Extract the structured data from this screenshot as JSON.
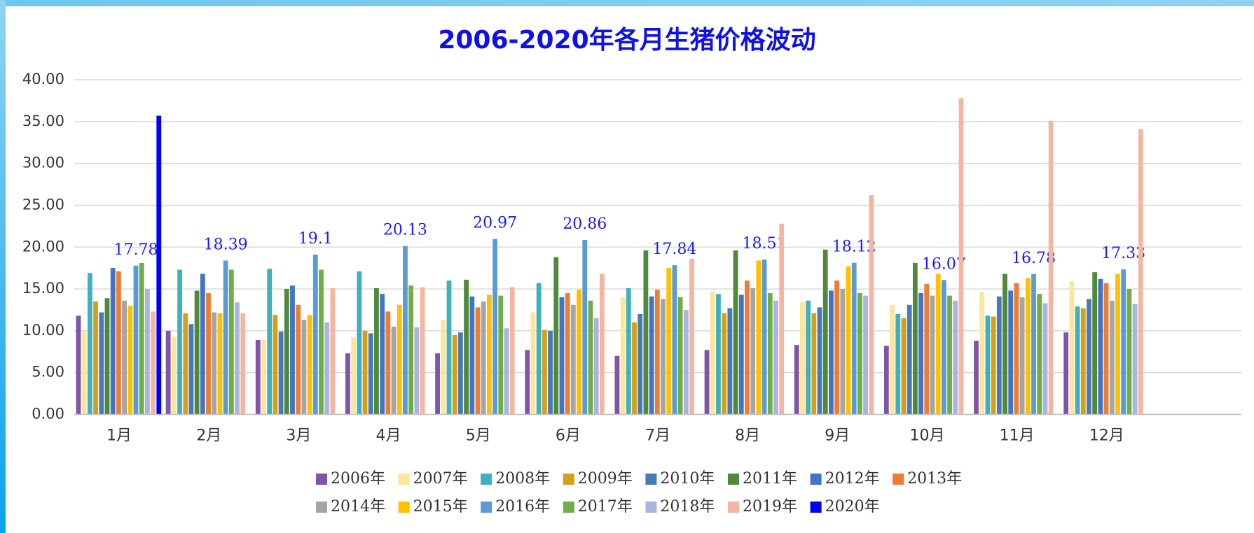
{
  "chart_data": {
    "type": "bar",
    "title": "2006-2020年各月生猪价格波动",
    "categories": [
      "1月",
      "2月",
      "3月",
      "4月",
      "5月",
      "6月",
      "7月",
      "8月",
      "9月",
      "10月",
      "11月",
      "12月"
    ],
    "ylim": [
      0,
      40
    ],
    "yticks": [
      {
        "value": 0,
        "label": "0.00"
      },
      {
        "value": 5,
        "label": "5.00"
      },
      {
        "value": 10,
        "label": "10.00"
      },
      {
        "value": 15,
        "label": "15.00"
      },
      {
        "value": 20,
        "label": "20.00"
      },
      {
        "value": 25,
        "label": "25.00"
      },
      {
        "value": 30,
        "label": "30.00"
      },
      {
        "value": 35,
        "label": "35.00"
      },
      {
        "value": 40,
        "label": "40.00"
      }
    ],
    "grid": true,
    "legend": "bottom",
    "data_labels_series": "2016年",
    "series": [
      {
        "name": "2006年",
        "color": "#7f55a5",
        "values": [
          11.8,
          10.0,
          8.9,
          7.3,
          7.3,
          7.7,
          7.0,
          7.7,
          8.3,
          8.2,
          8.8,
          9.8
        ]
      },
      {
        "name": "2007年",
        "color": "#fde59a",
        "values": [
          10.0,
          9.3,
          8.9,
          9.2,
          11.3,
          12.2,
          14.0,
          14.7,
          13.4,
          13.1,
          14.6,
          15.9
        ]
      },
      {
        "name": "2008年",
        "color": "#3fb0bd",
        "values": [
          16.9,
          17.3,
          17.4,
          17.1,
          16.0,
          15.7,
          15.1,
          14.4,
          13.6,
          12.0,
          11.8,
          12.9
        ]
      },
      {
        "name": "2009年",
        "color": "#d4a017",
        "values": [
          13.5,
          12.1,
          11.9,
          10.0,
          9.5,
          10.1,
          11.0,
          12.1,
          12.1,
          11.5,
          11.7,
          12.7
        ]
      },
      {
        "name": "2010年",
        "color": "#4a7ab5",
        "values": [
          12.2,
          10.8,
          9.9,
          9.7,
          9.8,
          10.0,
          12.0,
          12.7,
          12.8,
          13.1,
          14.1,
          13.8
        ]
      },
      {
        "name": "2011年",
        "color": "#4e8a3a",
        "values": [
          13.9,
          14.8,
          15.0,
          15.1,
          16.1,
          18.8,
          19.6,
          19.6,
          19.7,
          18.1,
          16.8,
          17.0
        ]
      },
      {
        "name": "2012年",
        "color": "#4472c4",
        "values": [
          17.5,
          16.8,
          15.4,
          14.4,
          14.1,
          14.0,
          14.1,
          14.3,
          14.8,
          14.5,
          14.8,
          16.2
        ]
      },
      {
        "name": "2013年",
        "color": "#ed7d31",
        "values": [
          17.1,
          14.5,
          13.1,
          12.3,
          12.8,
          14.5,
          14.9,
          16.0,
          16.0,
          15.6,
          15.7,
          15.7
        ]
      },
      {
        "name": "2014年",
        "color": "#a5a5a5",
        "values": [
          13.6,
          12.2,
          11.3,
          10.5,
          13.5,
          13.1,
          13.8,
          15.1,
          15.0,
          14.2,
          14.0,
          13.6
        ]
      },
      {
        "name": "2015年",
        "color": "#ffc000",
        "values": [
          13.0,
          12.1,
          11.9,
          13.1,
          14.3,
          14.9,
          17.5,
          18.4,
          17.7,
          16.8,
          16.3,
          16.8
        ]
      },
      {
        "name": "2016年",
        "color": "#5b9bd5",
        "values": [
          17.78,
          18.39,
          19.1,
          20.13,
          20.97,
          20.86,
          17.84,
          18.51,
          18.12,
          16.07,
          16.78,
          17.33
        ]
      },
      {
        "name": "2017年",
        "color": "#70ad47",
        "values": [
          18.1,
          17.3,
          17.3,
          15.4,
          14.2,
          13.6,
          14.0,
          14.5,
          14.5,
          14.2,
          14.4,
          15.0
        ]
      },
      {
        "name": "2018年",
        "color": "#aab4de",
        "values": [
          15.0,
          13.4,
          11.0,
          10.4,
          10.3,
          11.5,
          12.5,
          13.6,
          14.2,
          13.6,
          13.3,
          13.2
        ]
      },
      {
        "name": "2019年",
        "color": "#f4b6a0",
        "values": [
          12.3,
          12.1,
          15.1,
          15.2,
          15.2,
          16.8,
          18.6,
          22.8,
          26.2,
          37.8,
          35.1,
          34.1
        ]
      },
      {
        "name": "2020年",
        "color": "#0000ff",
        "values": [
          35.7,
          null,
          null,
          null,
          null,
          null,
          null,
          null,
          null,
          null,
          null,
          null
        ]
      }
    ]
  }
}
